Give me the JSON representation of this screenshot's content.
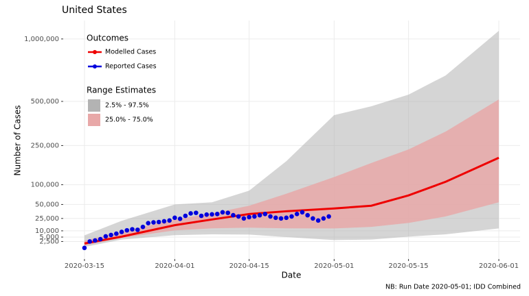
{
  "chart_data": {
    "type": "line",
    "title": "United States",
    "x_label": "Date",
    "y_label": "Number of Cases",
    "caption": "NB: Run Date 2020-05-01; IDD Combined",
    "y_scale": "sqrt",
    "grid": true,
    "xlim": [
      "2020-03-11",
      "2020-06-05"
    ],
    "xticks": [
      "2020-03-15",
      "2020-04-01",
      "2020-04-15",
      "2020-05-01",
      "2020-05-15",
      "2020-06-01"
    ],
    "ylim": [
      0,
      1180000
    ],
    "yticks": [
      {
        "value": 2500,
        "label": "2,500"
      },
      {
        "value": 5000,
        "label": "5,000"
      },
      {
        "value": 10000,
        "label": "10,000"
      },
      {
        "value": 25000,
        "label": "25,000"
      },
      {
        "value": 50000,
        "label": "50,000"
      },
      {
        "value": 100000,
        "label": "100,000"
      },
      {
        "value": 250000,
        "label": "250,000"
      },
      {
        "value": 500000,
        "label": "500,000"
      },
      {
        "value": 1000000,
        "label": "1,000,000"
      }
    ],
    "outcomes_title": "Outcomes",
    "ranges_title": "Range Estimates",
    "bands": [
      {
        "name": "2.5% - 97.5%",
        "color": "#b3b3b3",
        "x": [
          "2020-03-15",
          "2020-03-22",
          "2020-04-01",
          "2020-04-08",
          "2020-04-15",
          "2020-04-22",
          "2020-05-01",
          "2020-05-08",
          "2020-05-15",
          "2020-05-22",
          "2020-06-01"
        ],
        "lower": [
          600,
          3500,
          6300,
          7000,
          6800,
          5000,
          3200,
          3500,
          5300,
          7000,
          12400
        ],
        "upper": [
          6200,
          21600,
          50000,
          54700,
          83300,
          182000,
          413000,
          468000,
          546000,
          687000,
          1078000
        ]
      },
      {
        "name": "25.0% - 75.0%",
        "color": "#e8a8a8",
        "x": [
          "2020-03-15",
          "2020-03-22",
          "2020-04-01",
          "2020-04-08",
          "2020-04-15",
          "2020-04-22",
          "2020-05-01",
          "2020-05-08",
          "2020-05-15",
          "2020-05-22",
          "2020-06-01"
        ],
        "lower": [
          950,
          4500,
          10400,
          12500,
          13200,
          12500,
          12400,
          14000,
          18800,
          28000,
          54600
        ],
        "upper": [
          2900,
          9000,
          23500,
          33000,
          47400,
          75000,
          124000,
          175000,
          232000,
          320000,
          513000
        ]
      }
    ],
    "series": [
      {
        "name": "Modelled Cases",
        "color": "#ee0000",
        "style": "line",
        "x": [
          "2020-03-15",
          "2020-03-22",
          "2020-04-01",
          "2020-04-08",
          "2020-04-15",
          "2020-04-22",
          "2020-05-01",
          "2020-05-08",
          "2020-05-15",
          "2020-05-22",
          "2020-06-01"
        ],
        "values": [
          1650,
          5300,
          16000,
          23500,
          32000,
          36800,
          42000,
          47400,
          70800,
          109000,
          196000
        ]
      },
      {
        "name": "Reported Cases",
        "color": "#0000dd",
        "style": "points",
        "x": [
          "2020-03-15",
          "2020-03-16",
          "2020-03-17",
          "2020-03-18",
          "2020-03-19",
          "2020-03-20",
          "2020-03-21",
          "2020-03-22",
          "2020-03-23",
          "2020-03-24",
          "2020-03-25",
          "2020-03-26",
          "2020-03-27",
          "2020-03-28",
          "2020-03-29",
          "2020-03-30",
          "2020-03-31",
          "2020-04-01",
          "2020-04-02",
          "2020-04-03",
          "2020-04-04",
          "2020-04-05",
          "2020-04-06",
          "2020-04-07",
          "2020-04-08",
          "2020-04-09",
          "2020-04-10",
          "2020-04-11",
          "2020-04-12",
          "2020-04-13",
          "2020-04-14",
          "2020-04-15",
          "2020-04-16",
          "2020-04-17",
          "2020-04-18",
          "2020-04-19",
          "2020-04-20",
          "2020-04-21",
          "2020-04-22",
          "2020-04-23",
          "2020-04-24",
          "2020-04-25",
          "2020-04-26",
          "2020-04-27",
          "2020-04-28",
          "2020-04-29",
          "2020-04-30"
        ],
        "values": [
          400,
          2500,
          3000,
          3700,
          5500,
          6500,
          7500,
          9000,
          10500,
          11500,
          11000,
          14000,
          18500,
          19500,
          20000,
          21000,
          22000,
          26000,
          24500,
          29000,
          33000,
          34000,
          29000,
          31000,
          31500,
          32000,
          35000,
          34000,
          30000,
          28000,
          25000,
          27000,
          28000,
          30000,
          32000,
          28000,
          26000,
          25000,
          26000,
          28000,
          32000,
          35000,
          30000,
          25000,
          22000,
          25000,
          28000
        ]
      }
    ]
  }
}
